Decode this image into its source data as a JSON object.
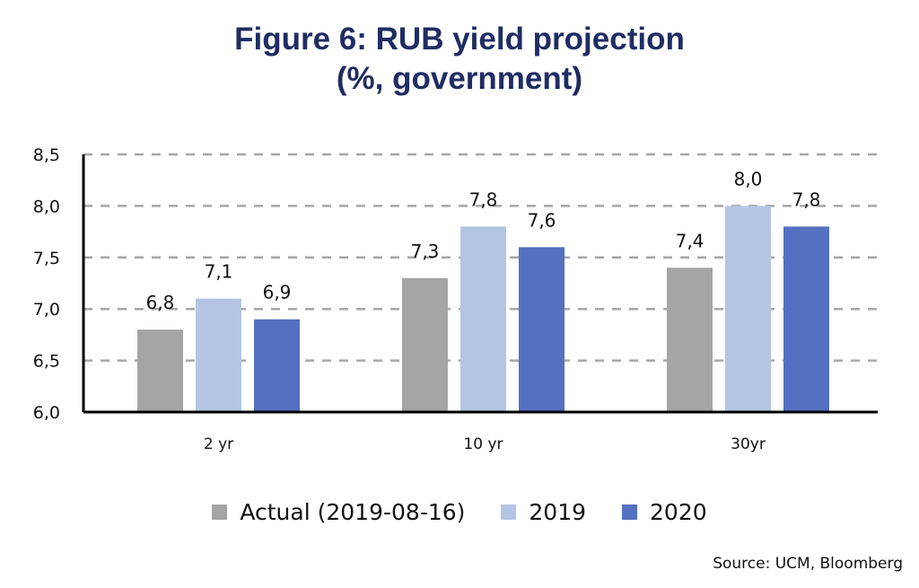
{
  "chart_data": {
    "type": "bar",
    "title": "Figure 6: RUB yield projection",
    "subtitle": "(%, government)",
    "xlabel": "",
    "ylabel": "",
    "categories": [
      "2 yr",
      "10 yr",
      "30yr"
    ],
    "series": [
      {
        "name": "Actual (2019-08-16)",
        "color": "#a5a5a5",
        "values": [
          6.8,
          7.3,
          7.4
        ],
        "labels": [
          "6,8",
          "7,3",
          "7,4"
        ]
      },
      {
        "name": "2019",
        "color": "#b4c5e4",
        "values": [
          7.1,
          7.8,
          8.0
        ],
        "labels": [
          "7,1",
          "7,8",
          "8,0"
        ]
      },
      {
        "name": "2020",
        "color": "#5470c0",
        "values": [
          6.9,
          7.6,
          7.8
        ],
        "labels": [
          "6,9",
          "7,6",
          "7,8"
        ]
      }
    ],
    "ylim": [
      6.0,
      8.5
    ],
    "yticks": [
      6.0,
      6.5,
      7.0,
      7.5,
      8.0,
      8.5
    ],
    "ytick_labels": [
      "6,0",
      "6,5",
      "7,0",
      "7,5",
      "8,0",
      "8,5"
    ],
    "grid": true,
    "grid_style": "dashed",
    "legend_position": "bottom"
  },
  "title_line1": "Figure 6: RUB yield projection",
  "title_line2": "(%, government)",
  "source": "Source: UCM, Bloomberg",
  "colors": {
    "title": "#1f2d63",
    "grid": "#a6a6a6",
    "axis": "#000000"
  }
}
